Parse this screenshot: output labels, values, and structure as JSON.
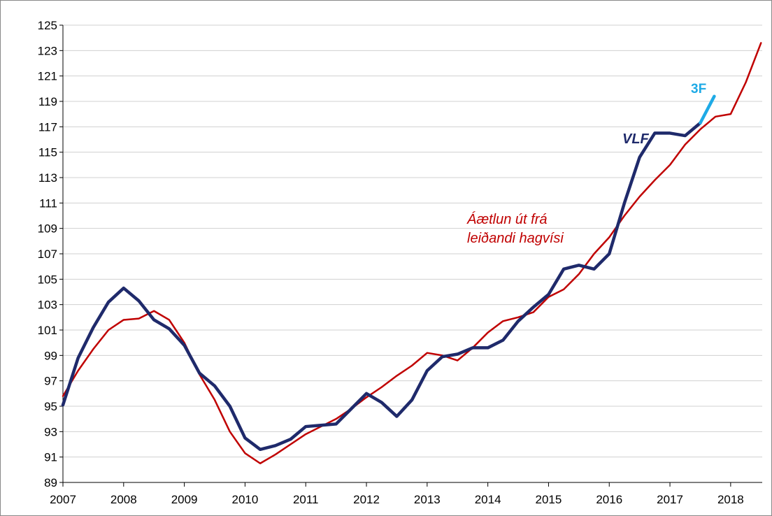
{
  "chart_data": {
    "type": "line",
    "xlim": [
      2007,
      2018.52
    ],
    "xticks": [
      2007,
      2008,
      2009,
      2010,
      2011,
      2012,
      2013,
      2014,
      2015,
      2016,
      2017,
      2018
    ],
    "ylim": [
      89,
      125
    ],
    "yticks": [
      89,
      91,
      93,
      95,
      97,
      99,
      101,
      103,
      105,
      107,
      109,
      111,
      113,
      115,
      117,
      119,
      121,
      123,
      125
    ],
    "grid": true,
    "series": [
      {
        "name": [
          "Áætlun út frá",
          "leiðandi hagvísi"
        ],
        "color": "#c00000",
        "width": 2.5,
        "x": [
          2007.0,
          2007.25,
          2007.5,
          2007.75,
          2008.0,
          2008.25,
          2008.5,
          2008.75,
          2009.0,
          2009.25,
          2009.5,
          2009.75,
          2010.0,
          2010.25,
          2010.5,
          2010.75,
          2011.0,
          2011.25,
          2011.5,
          2011.75,
          2012.0,
          2012.25,
          2012.5,
          2012.75,
          2013.0,
          2013.25,
          2013.5,
          2013.75,
          2014.0,
          2014.25,
          2014.5,
          2014.75,
          2015.0,
          2015.25,
          2015.5,
          2015.75,
          2016.0,
          2016.25,
          2016.5,
          2016.75,
          2017.0,
          2017.25,
          2017.5,
          2017.75,
          2018.0,
          2018.25,
          2018.5
        ],
        "values": [
          95.8,
          97.8,
          99.5,
          101.0,
          101.8,
          101.9,
          102.5,
          101.8,
          100.0,
          97.5,
          95.5,
          93.0,
          91.3,
          90.5,
          91.2,
          92.0,
          92.8,
          93.4,
          94.0,
          94.8,
          95.7,
          96.5,
          97.4,
          98.2,
          99.2,
          99.0,
          98.6,
          99.6,
          100.8,
          101.7,
          102.0,
          102.4,
          103.6,
          104.2,
          105.4,
          107.0,
          108.3,
          110.0,
          111.5,
          112.8,
          114.0,
          115.6,
          116.8,
          117.8,
          118.0,
          120.5,
          123.6
        ]
      },
      {
        "name": "VLF",
        "color": "#1f2a6b",
        "width": 4.5,
        "x": [
          2007.0,
          2007.25,
          2007.5,
          2007.75,
          2008.0,
          2008.25,
          2008.5,
          2008.75,
          2009.0,
          2009.25,
          2009.5,
          2009.75,
          2010.0,
          2010.25,
          2010.5,
          2010.75,
          2011.0,
          2011.25,
          2011.5,
          2011.75,
          2012.0,
          2012.25,
          2012.5,
          2012.75,
          2013.0,
          2013.25,
          2013.5,
          2013.75,
          2014.0,
          2014.25,
          2014.5,
          2014.75,
          2015.0,
          2015.25,
          2015.5,
          2015.75,
          2016.0,
          2016.25,
          2016.5,
          2016.75,
          2017.0,
          2017.25,
          2017.5
        ],
        "values": [
          95.1,
          98.8,
          101.2,
          103.2,
          104.3,
          103.3,
          101.8,
          101.1,
          99.8,
          97.6,
          96.6,
          95.0,
          92.5,
          91.6,
          91.9,
          92.4,
          93.4,
          93.5,
          93.6,
          94.8,
          96.0,
          95.3,
          94.2,
          95.5,
          97.8,
          98.9,
          99.1,
          99.6,
          99.6,
          100.2,
          101.7,
          102.8,
          103.8,
          105.8,
          106.1,
          105.8,
          107.0,
          111.0,
          114.6,
          116.5,
          116.5,
          116.3,
          117.3
        ]
      },
      {
        "name": "3F",
        "color": "#1eaae6",
        "width": 4.5,
        "x": [
          2017.5,
          2017.73
        ],
        "values": [
          117.3,
          119.4
        ]
      }
    ]
  }
}
